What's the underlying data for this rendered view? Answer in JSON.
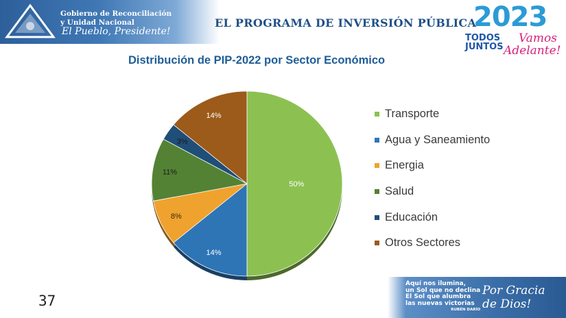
{
  "header": {
    "gov_line1": "Gobierno de Reconciliación",
    "gov_line2": "y Unidad Nacional",
    "slogan": "El Pueblo, Presidente!",
    "title": "EL PROGRAMA DE INVERSIÓN PÚBLICA"
  },
  "badge": {
    "year": "2023",
    "todos": "TODOS",
    "juntos": "JUNTOS",
    "vamos": "Vamos",
    "adelante": "Adelante!"
  },
  "chart_data": {
    "type": "pie",
    "title": "Distribución de PIP-2022 por Sector Económico",
    "categories": [
      "Transporte",
      "Agua y Saneamiento",
      "Energia",
      "Salud",
      "Educación",
      "Otros Sectores"
    ],
    "values": [
      50,
      14,
      8,
      11,
      3,
      14
    ],
    "labels": [
      "50%",
      "14%",
      "8%",
      "11%",
      "3%",
      "14%"
    ],
    "colors": [
      "#8cc152",
      "#2e75b6",
      "#f0a22e",
      "#548235",
      "#1f4e79",
      "#9c5b1a"
    ],
    "legend_position": "right"
  },
  "footer": {
    "page_number": "37",
    "quote_lines": [
      "Aquí nos ilumina,",
      "un Sol que no declina",
      "El Sol que alumbra",
      "las nuevas victorias"
    ],
    "quote_author": "RUBÉN DARÍO",
    "gracia_line1": "Por Gracia",
    "gracia_line2": "de Dios!"
  }
}
